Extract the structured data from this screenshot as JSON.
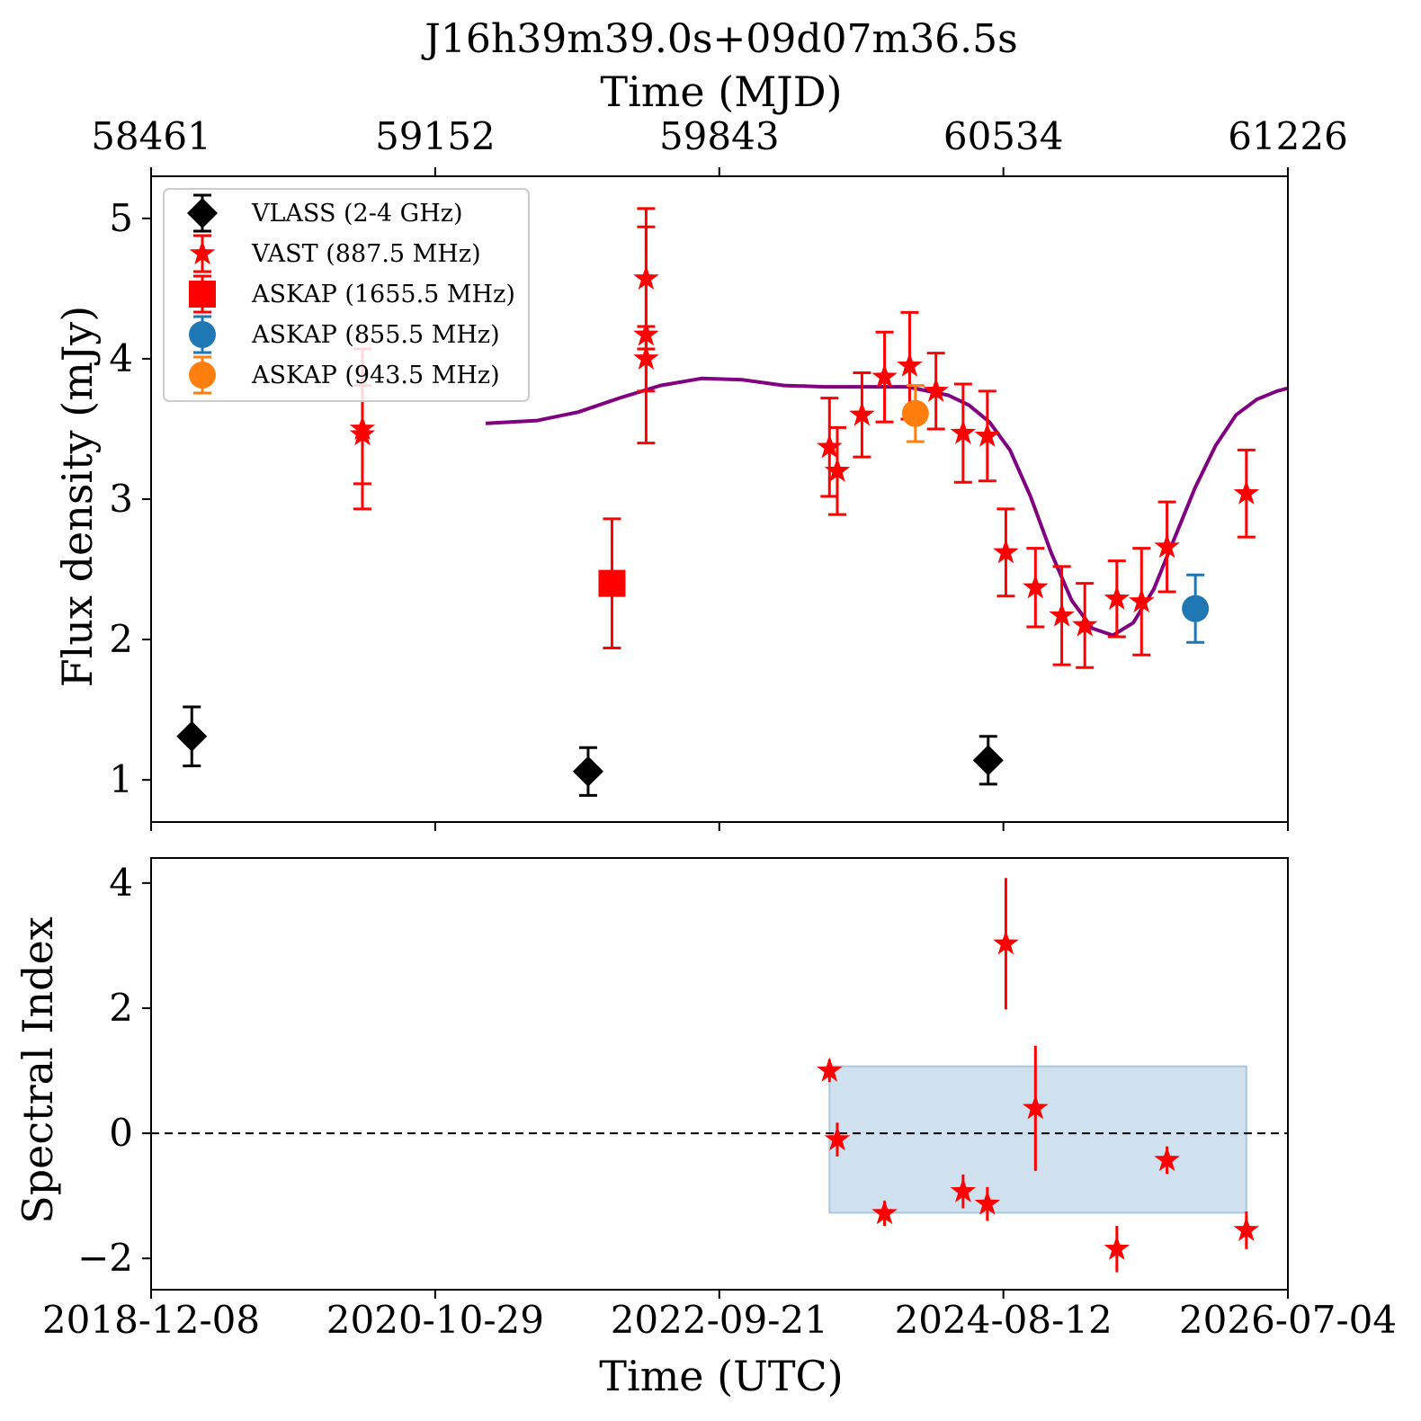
{
  "chart_data": [
    {
      "type": "scatter",
      "title": "J16h39m39.0s+09d07m36.5s",
      "top_xlabel": "Time (MJD)",
      "top_ticks": [
        {
          "mjd": 58461,
          "label": "58461"
        },
        {
          "mjd": 59152,
          "label": "59152"
        },
        {
          "mjd": 59843,
          "label": "59843"
        },
        {
          "mjd": 60534,
          "label": "60534"
        },
        {
          "mjd": 61226,
          "label": "61226"
        }
      ],
      "ylabel": "Flux density (mJy)",
      "y_ticks": [
        1,
        2,
        3,
        4,
        5
      ],
      "ylim": [
        0.7,
        5.3
      ],
      "xlim_mjd": [
        58461,
        61226
      ],
      "legend_position": "upper-left",
      "series": [
        {
          "name": "VLASS (2-4 GHz)",
          "marker": "diamond",
          "color": "#000000",
          "points": [
            {
              "mjd": 58560,
              "y": 1.31,
              "err": 0.21
            },
            {
              "mjd": 59524,
              "y": 1.06,
              "err": 0.17
            },
            {
              "mjd": 60497,
              "y": 1.14,
              "err": 0.17
            }
          ]
        },
        {
          "name": "VAST (887.5 MHz)",
          "marker": "star",
          "color": "#ff0000",
          "points": [
            {
              "mjd": 58975,
              "y": 3.5,
              "err": 0.57
            },
            {
              "mjd": 58975,
              "y": 3.46,
              "err": 0.35
            },
            {
              "mjd": 59665,
              "y": 4.57,
              "err": 0.5
            },
            {
              "mjd": 59665,
              "y": 4.17,
              "err": 0.77
            },
            {
              "mjd": 59665,
              "y": 4.0,
              "err": 0.23
            },
            {
              "mjd": 60111,
              "y": 3.37,
              "err": 0.35
            },
            {
              "mjd": 60130,
              "y": 3.2,
              "err": 0.31
            },
            {
              "mjd": 60190,
              "y": 3.6,
              "err": 0.3
            },
            {
              "mjd": 60245,
              "y": 3.87,
              "err": 0.32
            },
            {
              "mjd": 60306,
              "y": 3.95,
              "err": 0.38
            },
            {
              "mjd": 60370,
              "y": 3.77,
              "err": 0.27
            },
            {
              "mjd": 60436,
              "y": 3.47,
              "err": 0.35
            },
            {
              "mjd": 60495,
              "y": 3.45,
              "err": 0.32
            },
            {
              "mjd": 60540,
              "y": 2.62,
              "err": 0.31
            },
            {
              "mjd": 60612,
              "y": 2.37,
              "err": 0.28
            },
            {
              "mjd": 60676,
              "y": 2.17,
              "err": 0.35
            },
            {
              "mjd": 60732,
              "y": 2.1,
              "err": 0.3
            },
            {
              "mjd": 60810,
              "y": 2.29,
              "err": 0.27
            },
            {
              "mjd": 60870,
              "y": 2.27,
              "err": 0.38
            },
            {
              "mjd": 60932,
              "y": 2.66,
              "err": 0.32
            },
            {
              "mjd": 61125,
              "y": 3.04,
              "err": 0.31
            }
          ]
        },
        {
          "name": "ASKAP (1655.5 MHz)",
          "marker": "square",
          "color": "#ff0000",
          "points": [
            {
              "mjd": 59582,
              "y": 2.4,
              "err": 0.46
            }
          ]
        },
        {
          "name": "ASKAP (855.5 MHz)",
          "marker": "circle",
          "color": "#1f77b4",
          "points": [
            {
              "mjd": 61001,
              "y": 2.22,
              "err": 0.24
            }
          ]
        },
        {
          "name": "ASKAP (943.5 MHz)",
          "marker": "circle",
          "color": "#ff7f0e",
          "points": [
            {
              "mjd": 60320,
              "y": 3.61,
              "err": 0.2
            }
          ]
        }
      ],
      "model_curve": {
        "color": "#800080",
        "mjd": [
          59275,
          59400,
          59500,
          59600,
          59700,
          59800,
          59900,
          60000,
          60100,
          60200,
          60300,
          60400,
          60450,
          60500,
          60550,
          60600,
          60650,
          60700,
          60750,
          60800,
          60850,
          60900,
          60950,
          61000,
          61050,
          61100,
          61150,
          61200,
          61226
        ],
        "y": [
          3.54,
          3.56,
          3.62,
          3.72,
          3.81,
          3.86,
          3.85,
          3.81,
          3.8,
          3.8,
          3.8,
          3.74,
          3.67,
          3.55,
          3.35,
          3.02,
          2.62,
          2.28,
          2.08,
          2.03,
          2.12,
          2.36,
          2.72,
          3.08,
          3.38,
          3.6,
          3.71,
          3.77,
          3.79
        ]
      }
    },
    {
      "type": "scatter",
      "xlabel": "Time (UTC)",
      "x_ticks": [
        {
          "mjd": 58461,
          "label": "2018-12-08"
        },
        {
          "mjd": 59152,
          "label": "2020-10-29"
        },
        {
          "mjd": 59843,
          "label": "2022-09-21"
        },
        {
          "mjd": 60534,
          "label": "2024-08-12"
        },
        {
          "mjd": 61226,
          "label": "2026-07-04"
        }
      ],
      "ylabel": "Spectral Index",
      "y_ticks": [
        {
          "value": -2,
          "label": "−2"
        },
        {
          "value": 0,
          "label": "0"
        },
        {
          "value": 2,
          "label": "2"
        },
        {
          "value": 4,
          "label": "4"
        }
      ],
      "ylim": [
        -2.5,
        4.4
      ],
      "xlim_mjd": [
        58461,
        61226
      ],
      "reference_line": {
        "y": 0,
        "style": "dashed"
      },
      "shaded_band": {
        "x0": 60111,
        "x1": 61125,
        "y0": -1.27,
        "y1": 1.07,
        "color": "#cfe1ef"
      },
      "series": [
        {
          "name": "Spectral index",
          "marker": "star",
          "color": "#ff0000",
          "points": [
            {
              "mjd": 60111,
              "y": 1.0,
              "err": 0.18
            },
            {
              "mjd": 60130,
              "y": -0.1,
              "err": 0.27
            },
            {
              "mjd": 60245,
              "y": -1.28,
              "err": 0.2
            },
            {
              "mjd": 60436,
              "y": -0.93,
              "err": 0.27
            },
            {
              "mjd": 60495,
              "y": -1.13,
              "err": 0.27
            },
            {
              "mjd": 60540,
              "y": 3.03,
              "err": 1.05
            },
            {
              "mjd": 60612,
              "y": 0.4,
              "err": 1.0
            },
            {
              "mjd": 60810,
              "y": -1.85,
              "err": 0.37
            },
            {
              "mjd": 60932,
              "y": -0.43,
              "err": 0.22
            },
            {
              "mjd": 61125,
              "y": -1.55,
              "err": 0.3
            }
          ]
        }
      ]
    }
  ]
}
